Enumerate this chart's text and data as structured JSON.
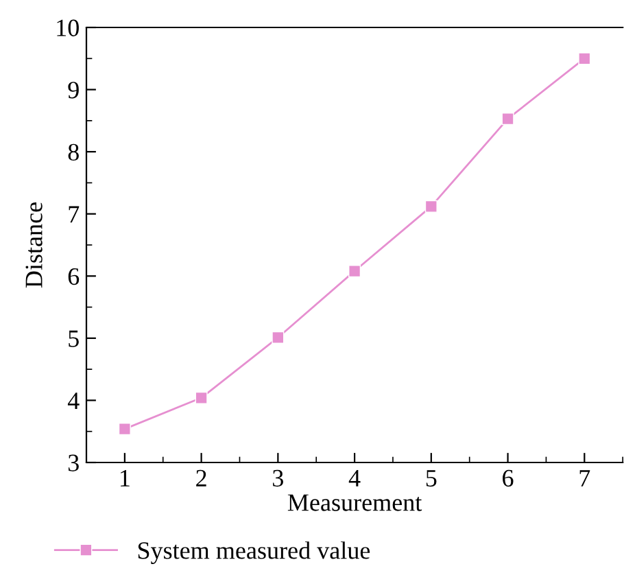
{
  "chart_data": {
    "type": "line",
    "xlabel": "Measurement",
    "ylabel": "Distance",
    "x": [
      1,
      2,
      3,
      4,
      5,
      6,
      7
    ],
    "series": [
      {
        "name": "System measured value",
        "color": "#e68fd0",
        "values": [
          3.54,
          4.04,
          5.01,
          6.08,
          7.12,
          8.53,
          9.5
        ]
      }
    ],
    "xlim": [
      0.5,
      7.5
    ],
    "xticks": [
      1,
      2,
      3,
      4,
      5,
      6,
      7
    ],
    "ylim": [
      3,
      10
    ],
    "yticks": [
      3,
      4,
      5,
      6,
      7,
      8,
      9,
      10
    ],
    "marker": "square",
    "line_style": "solid",
    "grid": false,
    "legend": "bottom"
  }
}
